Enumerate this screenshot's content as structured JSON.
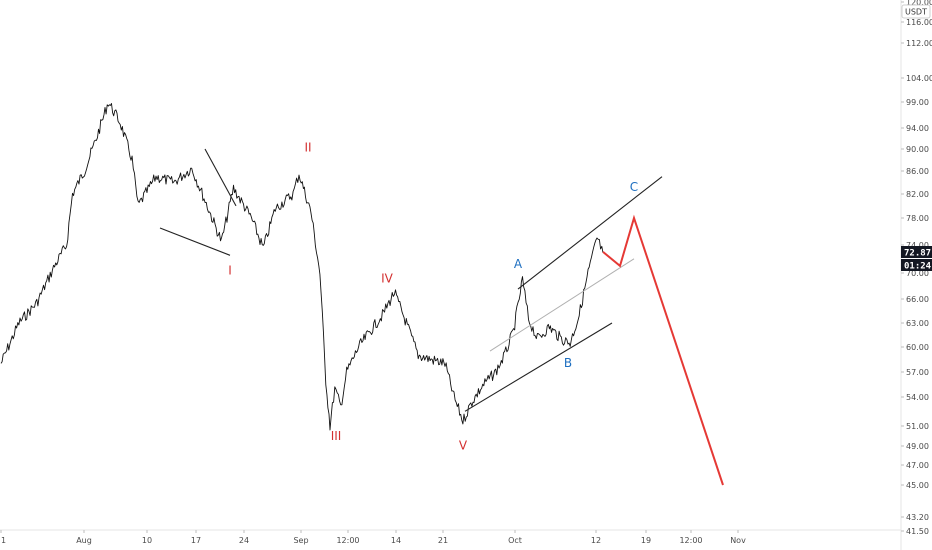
{
  "chart_data": {
    "type": "line",
    "title": "",
    "xlabel": "",
    "ylabel": "",
    "y_unit": "USDT",
    "ylim": [
      40.5,
      123
    ],
    "y_scale": "log",
    "grid": false,
    "x_ticks": [
      "1",
      "Aug",
      "10",
      "17",
      "24",
      "Sep",
      "12:00",
      "14",
      "21",
      "Oct",
      "12",
      "19",
      "12:00",
      "Nov"
    ],
    "y_ticks": [
      "41.50",
      "43.20",
      "45.00",
      "47.00",
      "49.00",
      "51.00",
      "54.00",
      "57.00",
      "60.00",
      "63.00",
      "66.00",
      "70.00",
      "74.00",
      "78.00",
      "82.00",
      "86.00",
      "90.00",
      "94.00",
      "99.00",
      "104.00",
      "112.00",
      "116.00",
      "120.00"
    ],
    "price_series": {
      "name": "",
      "points": [
        [
          0.0,
          58.0
        ],
        [
          0.03,
          63.0
        ],
        [
          0.06,
          65.5
        ],
        [
          0.09,
          71.0
        ],
        [
          0.11,
          74.0
        ],
        [
          0.12,
          82.0
        ],
        [
          0.14,
          86.0
        ],
        [
          0.16,
          92.0
        ],
        [
          0.18,
          99.0
        ],
        [
          0.2,
          95.0
        ],
        [
          0.22,
          88.0
        ],
        [
          0.23,
          80.0
        ],
        [
          0.26,
          85.0
        ],
        [
          0.29,
          84.0
        ],
        [
          0.32,
          86.5
        ],
        [
          0.35,
          79.0
        ],
        [
          0.37,
          74.5
        ],
        [
          0.39,
          83.0
        ],
        [
          0.42,
          78.0
        ],
        [
          0.44,
          73.5
        ],
        [
          0.46,
          79.5
        ],
        [
          0.49,
          82.0
        ],
        [
          0.5,
          85.5
        ],
        [
          0.52,
          79.0
        ],
        [
          0.535,
          70.0
        ],
        [
          0.545,
          56.0
        ],
        [
          0.552,
          51.0
        ],
        [
          0.56,
          55.0
        ],
        [
          0.57,
          53.0
        ],
        [
          0.58,
          57.0
        ],
        [
          0.6,
          60.0
        ],
        [
          0.62,
          62.0
        ],
        [
          0.64,
          64.0
        ],
        [
          0.66,
          67.0
        ],
        [
          0.68,
          63.0
        ],
        [
          0.7,
          59.0
        ],
        [
          0.72,
          58.5
        ],
        [
          0.745,
          58.0
        ],
        [
          0.76,
          54.0
        ],
        [
          0.775,
          51.5
        ],
        [
          0.79,
          53.5
        ],
        [
          0.81,
          55.5
        ],
        [
          0.83,
          57.0
        ],
        [
          0.845,
          59.0
        ],
        [
          0.86,
          62.0
        ],
        [
          0.875,
          69.0
        ],
        [
          0.885,
          63.5
        ],
        [
          0.9,
          61.0
        ],
        [
          0.92,
          62.5
        ],
        [
          0.94,
          61.0
        ],
        [
          0.955,
          60.5
        ],
        [
          0.97,
          64.0
        ],
        [
          0.985,
          70.0
        ],
        [
          1.0,
          75.0
        ],
        [
          1.01,
          72.87
        ]
      ]
    },
    "price_range": {
      "x_start": "1",
      "x_end": "12"
    },
    "projection": {
      "color": "#e53935",
      "points": [
        [
          "12",
          73.0
        ],
        [
          "14",
          71.0
        ],
        [
          "16",
          78.0
        ],
        [
          "Nov",
          45.0
        ]
      ]
    },
    "trendlines": [
      {
        "kind": "channel-upper",
        "from": [
          "30",
          67.5
        ],
        "to": [
          "Oct 18",
          85.0
        ],
        "color": "#222222"
      },
      {
        "kind": "channel-lower",
        "from": [
          "22",
          52.5
        ],
        "to": [
          "Oct 15",
          63.0
        ],
        "color": "#222222"
      },
      {
        "kind": "channel-mid",
        "from": [
          "28",
          59.5
        ],
        "to": [
          "Oct 16",
          72.0
        ],
        "color": "#b0b0b0"
      },
      {
        "kind": "wedge-lower",
        "from": [
          "Aug 12",
          76.5
        ],
        "to": [
          "Aug 21",
          72.5
        ],
        "color": "#222222"
      },
      {
        "kind": "wedge-upper",
        "from": [
          "Aug 18",
          90.0
        ],
        "to": [
          "Aug 22",
          80.0
        ],
        "color": "#222222"
      }
    ],
    "annotations": [
      {
        "text": "I",
        "x": "Aug 21",
        "y": 69.8,
        "color": "#d32f2f"
      },
      {
        "text": "II",
        "x": "Sep 4",
        "y": 89.5,
        "color": "#d32f2f"
      },
      {
        "text": "III",
        "x": "Sep 6",
        "y": 49.6,
        "color": "#d32f2f"
      },
      {
        "text": "IV",
        "x": "Sep 13",
        "y": 68.5,
        "color": "#d32f2f"
      },
      {
        "text": "V",
        "x": "Sep 22",
        "y": 48.6,
        "color": "#d32f2f"
      },
      {
        "text": "A",
        "x": "Oct 1",
        "y": 70.7,
        "color": "#1e6fc0"
      },
      {
        "text": "B",
        "x": "Oct 9",
        "y": 57.6,
        "color": "#1e6fc0"
      },
      {
        "text": "C",
        "x": "Oct 16",
        "y": 82.5,
        "color": "#1e6fc0"
      }
    ],
    "last_price": {
      "value": "72.87",
      "countdown": "01:24"
    }
  }
}
